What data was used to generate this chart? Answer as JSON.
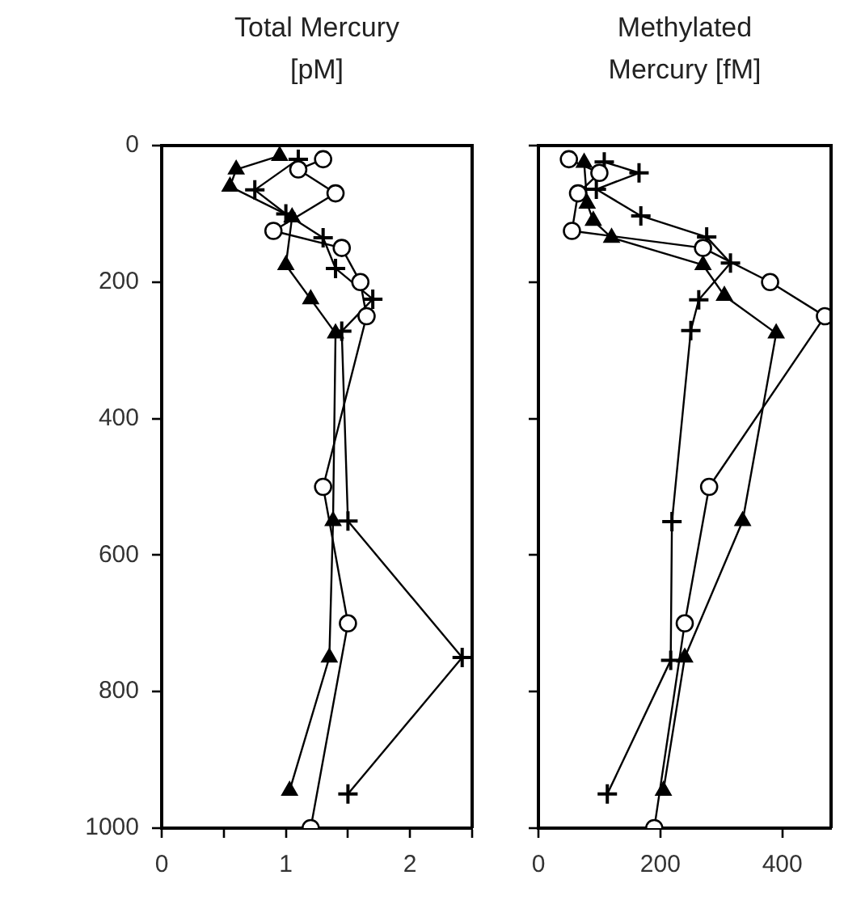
{
  "chart_data": [
    {
      "type": "line",
      "title": "Total Mercury\n[pM]",
      "xlim": [
        0,
        2.5
      ],
      "xticks": [
        0,
        {
          "value": 0.5,
          "label": null
        },
        1,
        {
          "value": 1.5,
          "label": null
        },
        2,
        {
          "value": 2.5,
          "label": null
        }
      ],
      "ylim": [
        1000,
        0
      ],
      "yticks": [
        0,
        200,
        400,
        600,
        800,
        1000
      ],
      "grid": false,
      "legend": false,
      "series": [
        {
          "color": "#000000",
          "marker": "circle",
          "x": [
            1.3,
            1.1,
            1.4,
            0.9,
            1.45,
            1.6,
            1.65,
            1.3,
            1.5,
            1.2
          ],
          "values": [
            20,
            35,
            70,
            125,
            150,
            200,
            250,
            500,
            700,
            1000
          ]
        },
        {
          "color": "#000000",
          "marker": "triangle",
          "x": [
            0.95,
            0.6,
            0.55,
            1.05,
            1.0,
            1.2,
            1.4,
            1.38,
            1.35,
            1.03
          ],
          "values": [
            15,
            35,
            60,
            105,
            175,
            225,
            275,
            550,
            750,
            945
          ]
        },
        {
          "color": "#000000",
          "marker": "cross",
          "x": [
            1.1,
            0.75,
            1.0,
            1.3,
            1.4,
            1.7,
            1.45,
            1.5,
            2.42,
            1.5
          ],
          "values": [
            20,
            65,
            100,
            135,
            180,
            225,
            272,
            550,
            750,
            950
          ]
        }
      ]
    },
    {
      "type": "line",
      "title": "Methylated\nMercury [fM]",
      "xlim": [
        0,
        480
      ],
      "xticks": [
        0,
        200,
        400
      ],
      "ylim": [
        1000,
        0
      ],
      "yticks": [
        0,
        200,
        400,
        600,
        800,
        1000
      ],
      "tick_labels": "x",
      "grid": false,
      "legend": false,
      "series": [
        {
          "color": "#000000",
          "marker": "circle",
          "x": [
            50,
            100,
            65,
            55,
            270,
            380,
            470,
            280,
            240,
            190
          ],
          "values": [
            20,
            40,
            70,
            125,
            150,
            200,
            250,
            500,
            700,
            1000
          ]
        },
        {
          "color": "#000000",
          "marker": "triangle",
          "x": [
            75,
            80,
            90,
            120,
            270,
            305,
            390,
            335,
            240,
            205
          ],
          "values": [
            25,
            85,
            110,
            135,
            175,
            220,
            275,
            550,
            750,
            945
          ]
        },
        {
          "color": "#000000",
          "marker": "cross",
          "x": [
            108,
            165,
            95,
            168,
            276,
            315,
            263,
            250,
            219,
            217,
            113
          ],
          "values": [
            24,
            40,
            64,
            103,
            134,
            172,
            226,
            271,
            551,
            754,
            950
          ]
        }
      ]
    }
  ]
}
